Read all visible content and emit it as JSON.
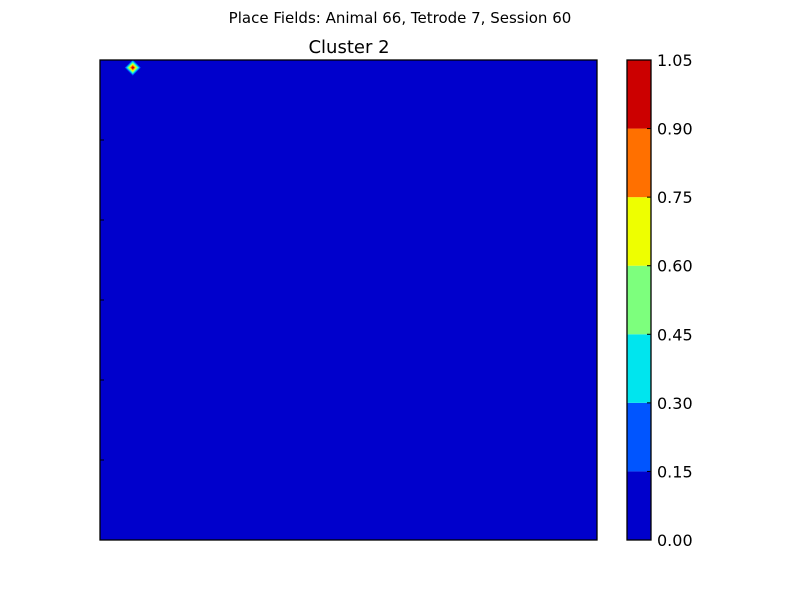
{
  "figure": {
    "suptitle": "Place Fields: Animal 66, Tetrode 7, Session 60"
  },
  "chart_data": {
    "type": "heatmap",
    "title": "Cluster 2",
    "xlabel": "",
    "ylabel": "",
    "background_level": 0.0,
    "peaks": [
      {
        "x": 0.066,
        "y": 0.984,
        "value": 1.0,
        "spread": 0.016
      }
    ],
    "colorbar": {
      "levels": [
        0.0,
        0.15,
        0.3,
        0.45,
        0.6,
        0.75,
        0.9,
        1.05
      ],
      "tick_labels": [
        "0.00",
        "0.15",
        "0.30",
        "0.45",
        "0.60",
        "0.75",
        "0.90",
        "1.05"
      ],
      "colors": [
        "#0000cc",
        "#0055ff",
        "#00e5ee",
        "#7dff7d",
        "#eeff00",
        "#ff7000",
        "#cc0000"
      ]
    }
  }
}
